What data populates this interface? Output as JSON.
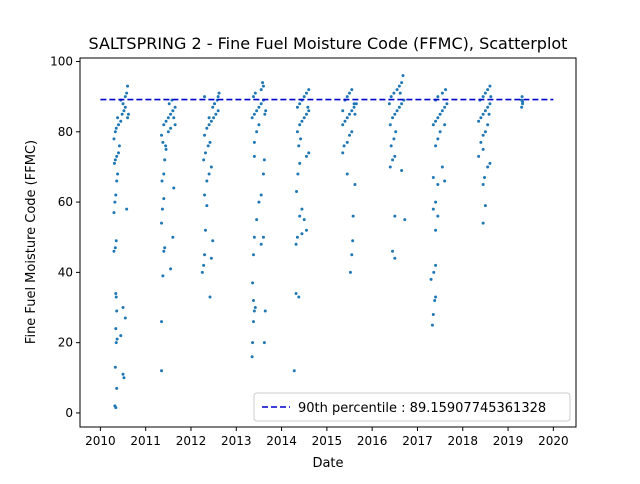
{
  "chart_data": {
    "type": "scatter",
    "title": "SALTSPRING 2 - Fine Fuel Moisture Code (FFMC), Scatterplot",
    "xlabel": "Date",
    "ylabel": "Fine Fuel Moisture Code (FFMC)",
    "xlim": [
      2009.55,
      2020.5
    ],
    "ylim": [
      -4,
      101
    ],
    "x_ticks": [
      2010,
      2011,
      2012,
      2013,
      2014,
      2015,
      2016,
      2017,
      2018,
      2019,
      2020
    ],
    "y_ticks": [
      0,
      20,
      40,
      60,
      80,
      100
    ],
    "grid": false,
    "legend_position": "lower-right",
    "colors": {
      "points": "#1f77b4",
      "reference_line": "#0000cc"
    },
    "reference_line": {
      "label": "90th percentile : 89.15907745361328",
      "y": 89.15907745361328,
      "x_range": [
        2010,
        2020
      ],
      "style": "dashed"
    },
    "series": [
      {
        "name": "",
        "points": [
          [
            2010.32,
            2
          ],
          [
            2010.34,
            1.5
          ],
          [
            2010.36,
            7
          ],
          [
            2010.33,
            13
          ],
          [
            2010.35,
            20
          ],
          [
            2010.37,
            21
          ],
          [
            2010.34,
            24
          ],
          [
            2010.36,
            29
          ],
          [
            2010.35,
            33
          ],
          [
            2010.34,
            34
          ],
          [
            2010.45,
            22
          ],
          [
            2010.5,
            11
          ],
          [
            2010.52,
            10
          ],
          [
            2010.55,
            27
          ],
          [
            2010.5,
            30
          ],
          [
            2010.3,
            46
          ],
          [
            2010.33,
            47
          ],
          [
            2010.35,
            49
          ],
          [
            2010.3,
            57
          ],
          [
            2010.32,
            60
          ],
          [
            2010.34,
            62
          ],
          [
            2010.36,
            66
          ],
          [
            2010.38,
            68
          ],
          [
            2010.31,
            71
          ],
          [
            2010.33,
            72
          ],
          [
            2010.36,
            73
          ],
          [
            2010.4,
            74
          ],
          [
            2010.42,
            76
          ],
          [
            2010.3,
            78
          ],
          [
            2010.33,
            80
          ],
          [
            2010.35,
            81
          ],
          [
            2010.4,
            82
          ],
          [
            2010.45,
            83
          ],
          [
            2010.38,
            84
          ],
          [
            2010.48,
            85
          ],
          [
            2010.52,
            86
          ],
          [
            2010.55,
            87
          ],
          [
            2010.5,
            88
          ],
          [
            2010.45,
            89
          ],
          [
            2010.55,
            90
          ],
          [
            2010.58,
            91
          ],
          [
            2010.6,
            93
          ],
          [
            2010.62,
            85
          ],
          [
            2010.6,
            84
          ],
          [
            2010.58,
            58
          ],
          [
            2011.35,
            12
          ],
          [
            2011.35,
            26
          ],
          [
            2011.38,
            39
          ],
          [
            2011.4,
            46
          ],
          [
            2011.42,
            47
          ],
          [
            2011.55,
            41
          ],
          [
            2011.6,
            50
          ],
          [
            2011.62,
            64
          ],
          [
            2011.35,
            54
          ],
          [
            2011.37,
            58
          ],
          [
            2011.4,
            61
          ],
          [
            2011.36,
            66
          ],
          [
            2011.4,
            68
          ],
          [
            2011.42,
            72
          ],
          [
            2011.45,
            75
          ],
          [
            2011.38,
            77
          ],
          [
            2011.35,
            79
          ],
          [
            2011.5,
            80
          ],
          [
            2011.55,
            81
          ],
          [
            2011.4,
            82
          ],
          [
            2011.45,
            83
          ],
          [
            2011.5,
            84
          ],
          [
            2011.55,
            85
          ],
          [
            2011.6,
            86
          ],
          [
            2011.65,
            87
          ],
          [
            2011.52,
            88
          ],
          [
            2011.58,
            89
          ],
          [
            2011.62,
            84
          ],
          [
            2011.65,
            82
          ],
          [
            2011.44,
            76
          ],
          [
            2012.25,
            40
          ],
          [
            2012.28,
            42
          ],
          [
            2012.3,
            45
          ],
          [
            2012.32,
            52
          ],
          [
            2012.35,
            59
          ],
          [
            2012.42,
            33
          ],
          [
            2012.45,
            44
          ],
          [
            2012.48,
            49
          ],
          [
            2012.3,
            62
          ],
          [
            2012.35,
            66
          ],
          [
            2012.4,
            68
          ],
          [
            2012.28,
            72
          ],
          [
            2012.32,
            74
          ],
          [
            2012.38,
            76
          ],
          [
            2012.42,
            77
          ],
          [
            2012.3,
            79
          ],
          [
            2012.35,
            81
          ],
          [
            2012.4,
            82
          ],
          [
            2012.45,
            83
          ],
          [
            2012.5,
            84
          ],
          [
            2012.55,
            85
          ],
          [
            2012.6,
            86
          ],
          [
            2012.48,
            87
          ],
          [
            2012.52,
            88
          ],
          [
            2012.58,
            89
          ],
          [
            2012.6,
            90
          ],
          [
            2012.62,
            91
          ],
          [
            2012.3,
            90
          ],
          [
            2012.4,
            84
          ],
          [
            2012.45,
            70
          ],
          [
            2013.35,
            16
          ],
          [
            2013.36,
            20
          ],
          [
            2013.38,
            26
          ],
          [
            2013.4,
            29
          ],
          [
            2013.42,
            30
          ],
          [
            2013.38,
            32
          ],
          [
            2013.36,
            37
          ],
          [
            2013.62,
            20
          ],
          [
            2013.64,
            29
          ],
          [
            2013.38,
            45
          ],
          [
            2013.4,
            50
          ],
          [
            2013.55,
            48
          ],
          [
            2013.6,
            50
          ],
          [
            2013.45,
            55
          ],
          [
            2013.5,
            60
          ],
          [
            2013.55,
            62
          ],
          [
            2013.6,
            68
          ],
          [
            2013.62,
            72
          ],
          [
            2013.4,
            77
          ],
          [
            2013.45,
            80
          ],
          [
            2013.5,
            82
          ],
          [
            2013.35,
            84
          ],
          [
            2013.4,
            85
          ],
          [
            2013.45,
            86
          ],
          [
            2013.5,
            87
          ],
          [
            2013.55,
            88
          ],
          [
            2013.6,
            89
          ],
          [
            2013.38,
            90
          ],
          [
            2013.42,
            91
          ],
          [
            2013.55,
            92
          ],
          [
            2013.6,
            93
          ],
          [
            2013.58,
            94
          ],
          [
            2013.65,
            86
          ],
          [
            2013.63,
            85
          ],
          [
            2013.4,
            73
          ],
          [
            2014.28,
            12
          ],
          [
            2014.32,
            34
          ],
          [
            2014.38,
            33
          ],
          [
            2014.32,
            48
          ],
          [
            2014.35,
            50
          ],
          [
            2014.45,
            51
          ],
          [
            2014.55,
            52
          ],
          [
            2014.5,
            55
          ],
          [
            2014.4,
            56
          ],
          [
            2014.45,
            58
          ],
          [
            2014.33,
            63
          ],
          [
            2014.36,
            68
          ],
          [
            2014.4,
            71
          ],
          [
            2014.55,
            73
          ],
          [
            2014.6,
            74
          ],
          [
            2014.38,
            76
          ],
          [
            2014.42,
            78
          ],
          [
            2014.35,
            80
          ],
          [
            2014.4,
            82
          ],
          [
            2014.45,
            83
          ],
          [
            2014.5,
            84
          ],
          [
            2014.55,
            85
          ],
          [
            2014.6,
            86
          ],
          [
            2014.35,
            87
          ],
          [
            2014.4,
            88
          ],
          [
            2014.45,
            89
          ],
          [
            2014.5,
            90
          ],
          [
            2014.55,
            91
          ],
          [
            2014.6,
            92
          ],
          [
            2014.58,
            87
          ],
          [
            2015.52,
            40
          ],
          [
            2015.55,
            45
          ],
          [
            2015.57,
            49
          ],
          [
            2015.62,
            65
          ],
          [
            2015.58,
            56
          ],
          [
            2015.45,
            68
          ],
          [
            2015.35,
            74
          ],
          [
            2015.38,
            76
          ],
          [
            2015.45,
            77
          ],
          [
            2015.5,
            79
          ],
          [
            2015.55,
            80
          ],
          [
            2015.35,
            82
          ],
          [
            2015.4,
            83
          ],
          [
            2015.45,
            84
          ],
          [
            2015.5,
            85
          ],
          [
            2015.55,
            86
          ],
          [
            2015.6,
            87
          ],
          [
            2015.65,
            88
          ],
          [
            2015.4,
            89
          ],
          [
            2015.45,
            90
          ],
          [
            2015.5,
            91
          ],
          [
            2015.55,
            92
          ],
          [
            2015.6,
            88
          ],
          [
            2015.62,
            85
          ],
          [
            2015.35,
            86
          ],
          [
            2016.45,
            46
          ],
          [
            2016.5,
            44
          ],
          [
            2016.5,
            56
          ],
          [
            2016.72,
            55
          ],
          [
            2016.4,
            70
          ],
          [
            2016.45,
            72
          ],
          [
            2016.5,
            73
          ],
          [
            2016.65,
            69
          ],
          [
            2016.42,
            76
          ],
          [
            2016.48,
            78
          ],
          [
            2016.52,
            80
          ],
          [
            2016.4,
            82
          ],
          [
            2016.45,
            84
          ],
          [
            2016.5,
            85
          ],
          [
            2016.55,
            86
          ],
          [
            2016.6,
            87
          ],
          [
            2016.65,
            88
          ],
          [
            2016.7,
            89
          ],
          [
            2016.42,
            90
          ],
          [
            2016.48,
            91
          ],
          [
            2016.55,
            92
          ],
          [
            2016.6,
            93
          ],
          [
            2016.65,
            94
          ],
          [
            2016.68,
            96
          ],
          [
            2016.62,
            91
          ],
          [
            2016.38,
            88
          ],
          [
            2017.33,
            25
          ],
          [
            2017.35,
            28
          ],
          [
            2017.38,
            32
          ],
          [
            2017.4,
            33
          ],
          [
            2017.36,
            40
          ],
          [
            2017.4,
            42
          ],
          [
            2017.3,
            38
          ],
          [
            2017.45,
            56
          ],
          [
            2017.4,
            52
          ],
          [
            2017.35,
            58
          ],
          [
            2017.4,
            60
          ],
          [
            2017.45,
            65
          ],
          [
            2017.35,
            67
          ],
          [
            2017.6,
            66
          ],
          [
            2017.55,
            70
          ],
          [
            2017.4,
            76
          ],
          [
            2017.45,
            78
          ],
          [
            2017.5,
            80
          ],
          [
            2017.35,
            82
          ],
          [
            2017.4,
            83
          ],
          [
            2017.45,
            84
          ],
          [
            2017.5,
            85
          ],
          [
            2017.55,
            86
          ],
          [
            2017.6,
            87
          ],
          [
            2017.65,
            88
          ],
          [
            2017.4,
            89
          ],
          [
            2017.45,
            90
          ],
          [
            2017.55,
            91
          ],
          [
            2017.62,
            92
          ],
          [
            2017.6,
            82
          ],
          [
            2018.45,
            54
          ],
          [
            2018.5,
            59
          ],
          [
            2018.45,
            65
          ],
          [
            2018.48,
            67
          ],
          [
            2018.55,
            70
          ],
          [
            2018.6,
            71
          ],
          [
            2018.35,
            73
          ],
          [
            2018.45,
            75
          ],
          [
            2018.4,
            77
          ],
          [
            2018.45,
            79
          ],
          [
            2018.5,
            80
          ],
          [
            2018.55,
            82
          ],
          [
            2018.35,
            83
          ],
          [
            2018.4,
            84
          ],
          [
            2018.45,
            85
          ],
          [
            2018.5,
            86
          ],
          [
            2018.55,
            87
          ],
          [
            2018.6,
            88
          ],
          [
            2018.38,
            89
          ],
          [
            2018.45,
            90
          ],
          [
            2018.5,
            91
          ],
          [
            2018.55,
            92
          ],
          [
            2018.6,
            93
          ],
          [
            2018.62,
            90
          ],
          [
            2018.58,
            85
          ],
          [
            2019.3,
            87
          ],
          [
            2019.32,
            88
          ],
          [
            2019.3,
            89
          ],
          [
            2019.31,
            90
          ],
          [
            2019.32,
            88.5
          ]
        ]
      }
    ]
  }
}
